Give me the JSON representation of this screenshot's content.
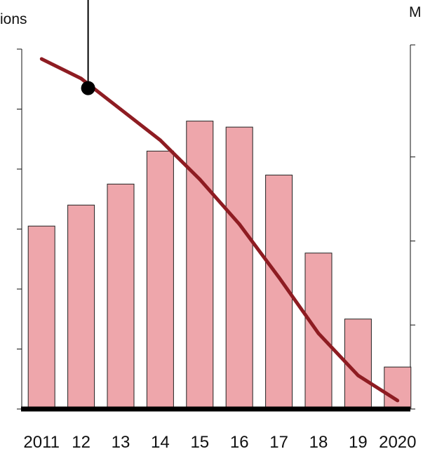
{
  "chart_data": {
    "type": "bar",
    "categories": [
      "2011",
      "12",
      "13",
      "14",
      "15",
      "16",
      "17",
      "18",
      "19",
      "2020"
    ],
    "series": [
      {
        "type": "bar",
        "axis": "left",
        "values": [
          61,
          68,
          75,
          86,
          96,
          94,
          78,
          52,
          30,
          14
        ]
      },
      {
        "type": "line",
        "axis": "right",
        "values": [
          95,
          88,
          77,
          66,
          52,
          36,
          17,
          -3,
          -18,
          -27
        ]
      }
    ],
    "left_axis": {
      "label": "ions",
      "ylim": [
        0,
        120
      ],
      "ticks": [
        0,
        20,
        40,
        60,
        80,
        100,
        120
      ]
    },
    "right_axis": {
      "label": "M",
      "ylim": [
        -30,
        100
      ],
      "ticks": [
        -30,
        0,
        30,
        60,
        100
      ]
    },
    "annotation_marker": {
      "category": "12",
      "y_left": 107
    },
    "grid": false,
    "colors": {
      "bar_fill": "#eea6ab",
      "bar_edge": "#222222",
      "line": "#8e1c22",
      "baseline": "#000000",
      "marker": "#000000"
    }
  }
}
